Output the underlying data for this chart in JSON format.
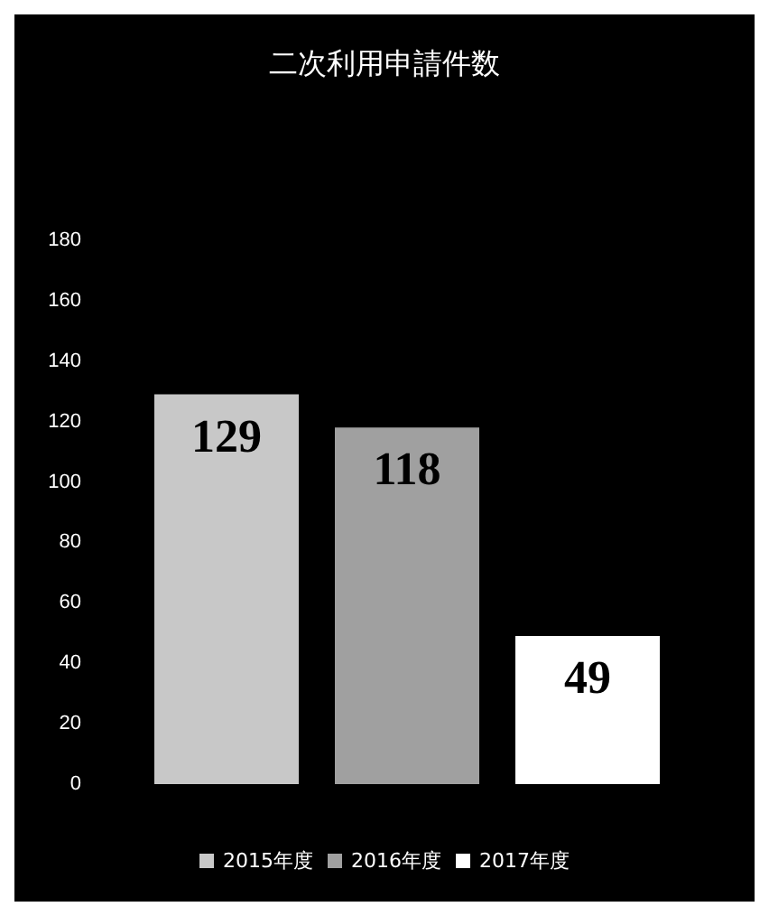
{
  "chart_data": {
    "type": "bar",
    "title": "二次利用申請件数",
    "categories": [
      null
    ],
    "series": [
      {
        "name": "2015年度",
        "color": "#c8c8c8",
        "values": [
          129
        ]
      },
      {
        "name": "2016年度",
        "color": "#a0a0a0",
        "values": [
          118
        ]
      },
      {
        "name": "2017年度",
        "color": "#ffffff",
        "values": [
          49
        ]
      }
    ],
    "ylim": [
      0,
      180
    ],
    "yticks": [
      0,
      20,
      40,
      60,
      80,
      100,
      120,
      140,
      160,
      180
    ],
    "data_labels": true,
    "legend": "bottom",
    "grid": false
  }
}
